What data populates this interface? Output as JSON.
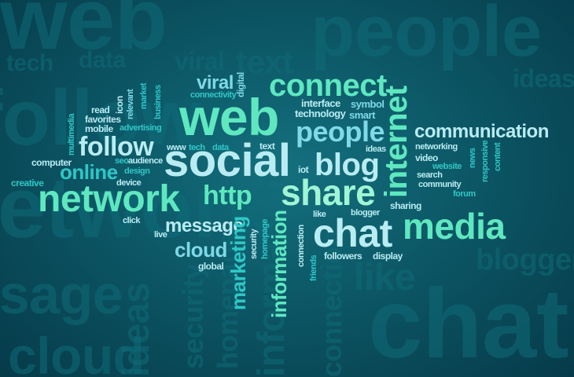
{
  "colors": {
    "background_center": "#14707e",
    "background_edge": "#063a49",
    "mint": "#5fe8c0",
    "teal": "#2fc7c6",
    "pale_cyan": "#b9ecf2",
    "light_blue": "#7fd9e6",
    "pale_mint": "#9ff5d4",
    "shadow_words": "#0f6b78"
  },
  "background_words": {
    "web": "web",
    "people": "people",
    "tech": "tech",
    "data": "data",
    "viral": "viral",
    "text": "text",
    "ideas": "ideas",
    "network": "network",
    "message": "message",
    "cloud": "cloud",
    "chat": "chat",
    "blogger": "blogger",
    "security": "security",
    "like": "like",
    "connection": "connection",
    "information": "information",
    "homepage": "homepage",
    "follow": "follow"
  },
  "words": {
    "web": "web",
    "social": "social",
    "network": "network",
    "share": "share",
    "http": "http",
    "chat": "chat",
    "media": "media",
    "connect": "connect",
    "people": "people",
    "blog": "blog",
    "internet": "internet",
    "follow": "follow",
    "online": "online",
    "viral": "viral",
    "message": "message",
    "cloud": "cloud",
    "marketing": "marketing",
    "information": "information",
    "communication": "communication",
    "connectivity": "connectivity",
    "digital": "digital",
    "interface": "interface",
    "symbol": "symbol",
    "technology": "technology",
    "smart": "smart",
    "icon": "icon",
    "relevant": "relevant",
    "market": "market",
    "business": "business",
    "read": "read",
    "favorites": "favorites",
    "mobile": "mobile",
    "advertising": "advertising",
    "multimedia": "multimedia",
    "www": "www",
    "tech": "tech",
    "data": "data",
    "text": "text",
    "computer": "computer",
    "seo": "seo",
    "audience": "audience",
    "design": "design",
    "device": "device",
    "creative": "creative",
    "click": "click",
    "live": "live",
    "global": "global",
    "security": "security",
    "homepage": "homepage",
    "connection": "connection",
    "friends": "friends",
    "followers": "followers",
    "display": "display",
    "like": "like",
    "blogger": "blogger",
    "sharing": "sharing",
    "iot": "iot",
    "ideas": "ideas",
    "networking": "networking",
    "video": "video",
    "website": "website",
    "search": "search",
    "community": "community",
    "forum": "forum",
    "news": "news",
    "responsive": "responsive",
    "content": "content"
  }
}
